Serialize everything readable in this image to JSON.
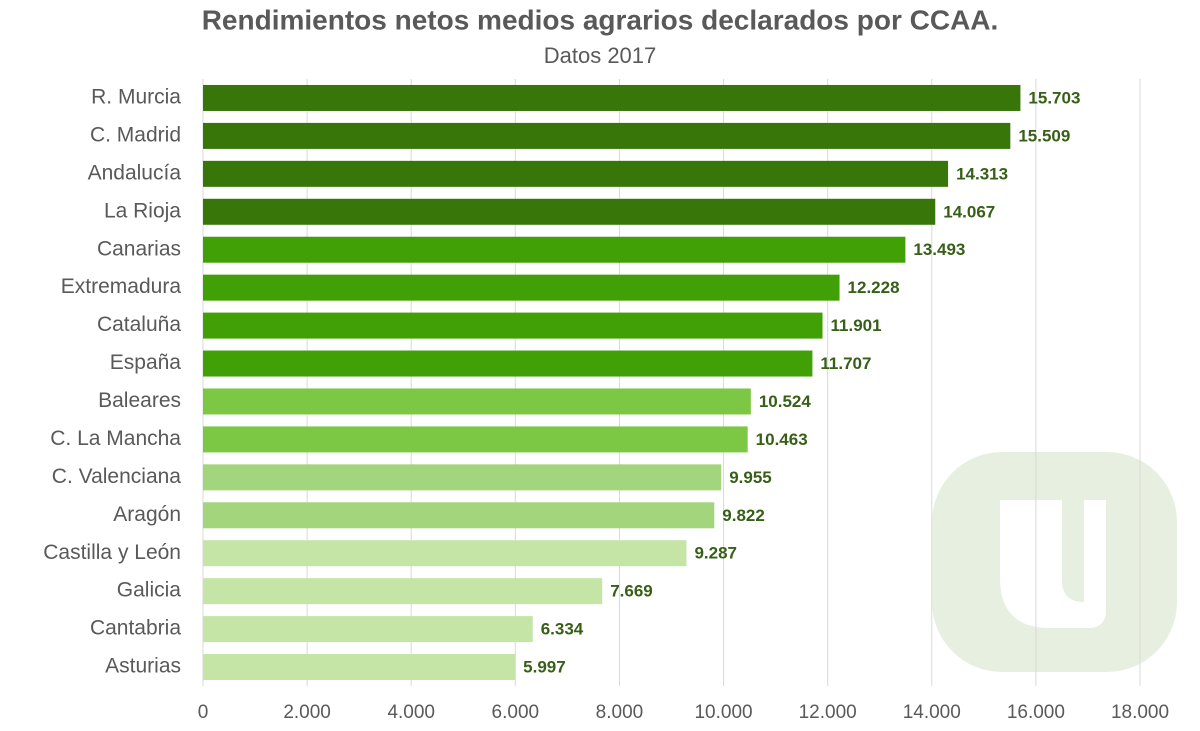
{
  "chart_data": {
    "type": "bar",
    "orientation": "horizontal",
    "title": "Rendimientos netos medios agrarios declarados por CCAA.",
    "subtitle": "Datos 2017",
    "categories": [
      "R. Murcia",
      "C. Madrid",
      "Andalucía",
      "La Rioja",
      "Canarias",
      "Extremadura",
      "Cataluña",
      "España",
      "Baleares",
      "C. La Mancha",
      "C. Valenciana",
      "Aragón",
      "Castilla y León",
      "Galicia",
      "Cantabria",
      "Asturias"
    ],
    "values": [
      15703,
      15509,
      14313,
      14067,
      13493,
      12228,
      11901,
      11707,
      10524,
      10463,
      9955,
      9822,
      9287,
      7669,
      6334,
      5997
    ],
    "value_labels": [
      "15.703",
      "15.509",
      "14.313",
      "14.067",
      "13.493",
      "12.228",
      "11.901",
      "11.707",
      "10.524",
      "10.463",
      "9.955",
      "9.822",
      "9.287",
      "7.669",
      "6.334",
      "5.997"
    ],
    "colors": [
      "#38760a",
      "#38760a",
      "#38760a",
      "#38760a",
      "#40a006",
      "#40a006",
      "#40a006",
      "#40a006",
      "#7cc744",
      "#7cc744",
      "#a2d57c",
      "#a2d57c",
      "#c4e5a6",
      "#c4e5a6",
      "#c4e5a6",
      "#c4e5a6"
    ],
    "xlim": [
      0,
      18000
    ],
    "xticks": [
      0,
      {
        "value": 2000,
        "label": "2.000"
      },
      {
        "value": 4000,
        "label": "4.000"
      },
      {
        "value": 6000,
        "label": "6.000"
      },
      {
        "value": 8000,
        "label": "8.000"
      },
      {
        "value": 10000,
        "label": "10.000"
      },
      {
        "value": 12000,
        "label": "12.000"
      },
      {
        "value": 14000,
        "label": "14.000"
      },
      {
        "value": 16000,
        "label": "16.000"
      },
      {
        "value": 18000,
        "label": "18.000"
      }
    ],
    "grid": true
  }
}
